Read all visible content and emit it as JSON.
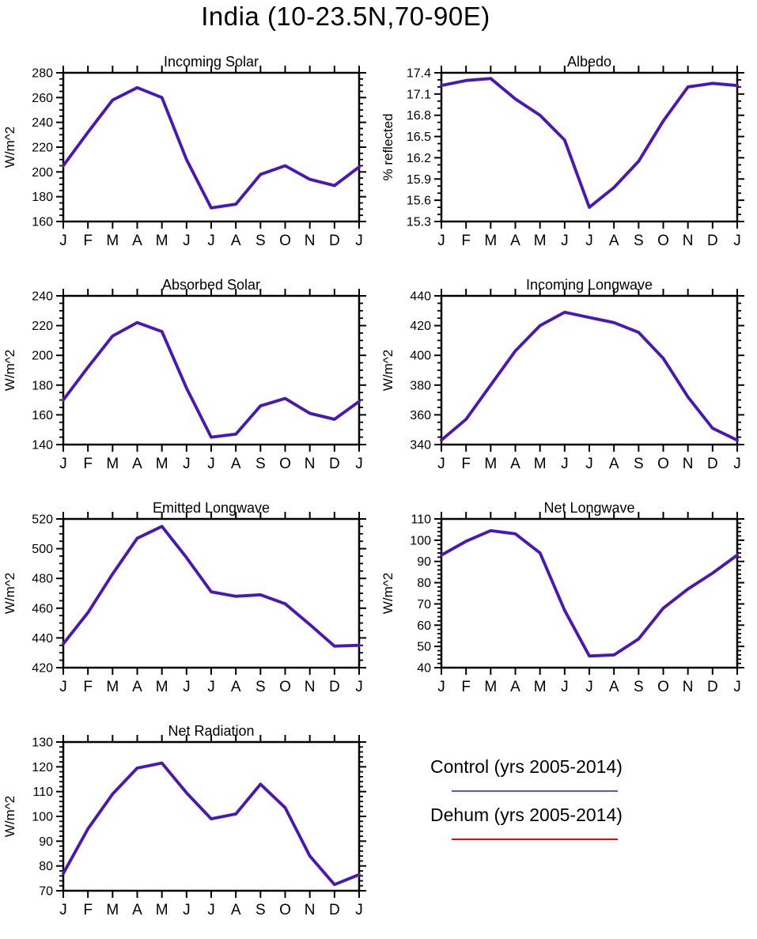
{
  "title": "India (10-23.5N,70-90E)",
  "colors": {
    "control_line": "#2222dd",
    "dehum_line": "#ee1111",
    "legend_control": "#5555e5",
    "legend_dehum": "#ff0000",
    "axis": "#000000"
  },
  "legend": {
    "items": [
      {
        "name": "control",
        "label": "Control (yrs 2005-2014)",
        "color": "#5555e5"
      },
      {
        "name": "dehum",
        "label": "Dehum (yrs 2005-2014)",
        "color": "#ff0000"
      }
    ]
  },
  "chart_data": [
    {
      "type": "line",
      "title": "Incoming Solar",
      "ylabel": "W/m^2",
      "ylim": [
        160,
        280
      ],
      "ytick_step": 20,
      "yminor_step": 5,
      "ydecimals": 0,
      "grid": false,
      "categories": [
        "J",
        "F",
        "M",
        "A",
        "M",
        "J",
        "J",
        "A",
        "S",
        "O",
        "N",
        "D",
        "J"
      ],
      "series": [
        {
          "name": "Control (yrs 2005-2014)",
          "values": [
            205,
            232,
            258,
            268,
            260,
            210,
            171,
            174,
            198,
            205,
            194,
            189,
            204
          ]
        },
        {
          "name": "Dehum (yrs 2005-2014)",
          "values": [
            205,
            232,
            258,
            268,
            260,
            210,
            171,
            174,
            198,
            205,
            194,
            189,
            204
          ]
        }
      ]
    },
    {
      "type": "line",
      "title": "Albedo",
      "ylabel": "% reflected",
      "ylim": [
        15.3,
        17.4
      ],
      "ytick_step": 0.3,
      "yminor_step": 0.1,
      "ydecimals": 1,
      "grid": false,
      "categories": [
        "J",
        "F",
        "M",
        "A",
        "M",
        "J",
        "J",
        "A",
        "S",
        "O",
        "N",
        "D",
        "J"
      ],
      "series": [
        {
          "name": "Control (yrs 2005-2014)",
          "values": [
            17.22,
            17.29,
            17.32,
            17.03,
            16.8,
            16.45,
            15.5,
            15.78,
            16.15,
            16.72,
            17.2,
            17.25,
            17.22
          ]
        },
        {
          "name": "Dehum (yrs 2005-2014)",
          "values": [
            17.22,
            17.29,
            17.32,
            17.03,
            16.8,
            16.45,
            15.5,
            15.78,
            16.15,
            16.72,
            17.2,
            17.25,
            17.22
          ]
        }
      ]
    },
    {
      "type": "line",
      "title": "Absorbed Solar",
      "ylabel": "W/m^2",
      "ylim": [
        140,
        240
      ],
      "ytick_step": 20,
      "yminor_step": 5,
      "ydecimals": 0,
      "grid": false,
      "categories": [
        "J",
        "F",
        "M",
        "A",
        "M",
        "J",
        "J",
        "A",
        "S",
        "O",
        "N",
        "D",
        "J"
      ],
      "series": [
        {
          "name": "Control (yrs 2005-2014)",
          "values": [
            170,
            192,
            213,
            222,
            216,
            178,
            145,
            147,
            166,
            171,
            161,
            157,
            169
          ]
        },
        {
          "name": "Dehum (yrs 2005-2014)",
          "values": [
            170,
            192,
            213,
            222,
            216,
            178,
            145,
            147,
            166,
            171,
            161,
            157,
            169
          ]
        }
      ]
    },
    {
      "type": "line",
      "title": "Incoming Longwave",
      "ylabel": "W/m^2",
      "ylim": [
        340,
        440
      ],
      "ytick_step": 20,
      "yminor_step": 5,
      "ydecimals": 0,
      "grid": false,
      "categories": [
        "J",
        "F",
        "M",
        "A",
        "M",
        "J",
        "J",
        "A",
        "S",
        "O",
        "N",
        "D",
        "J"
      ],
      "series": [
        {
          "name": "Control (yrs 2005-2014)",
          "values": [
            343,
            357,
            380,
            403,
            420,
            429,
            425.5,
            422,
            415.5,
            398,
            372,
            351,
            343
          ]
        },
        {
          "name": "Dehum (yrs 2005-2014)",
          "values": [
            343,
            357,
            380,
            403,
            420,
            429,
            425.5,
            422,
            415.5,
            398,
            372,
            351,
            343
          ]
        }
      ]
    },
    {
      "type": "line",
      "title": "Emitted Longwave",
      "ylabel": "W/m^2",
      "ylim": [
        420,
        520
      ],
      "ytick_step": 20,
      "yminor_step": 5,
      "ydecimals": 0,
      "grid": false,
      "categories": [
        "J",
        "F",
        "M",
        "A",
        "M",
        "J",
        "J",
        "A",
        "S",
        "O",
        "N",
        "D",
        "J"
      ],
      "series": [
        {
          "name": "Control (yrs 2005-2014)",
          "values": [
            436,
            457,
            483,
            507,
            515,
            494,
            471,
            468,
            469,
            463,
            449,
            434.5,
            435
          ]
        },
        {
          "name": "Dehum (yrs 2005-2014)",
          "values": [
            436,
            457,
            483,
            507,
            515,
            494,
            471,
            468,
            469,
            463,
            449,
            434.5,
            435
          ]
        }
      ]
    },
    {
      "type": "line",
      "title": "Net Longwave",
      "ylabel": "W/m^2",
      "ylim": [
        40,
        110
      ],
      "ytick_step": 10,
      "yminor_step": 2,
      "ydecimals": 0,
      "grid": false,
      "categories": [
        "J",
        "F",
        "M",
        "A",
        "M",
        "J",
        "J",
        "A",
        "S",
        "O",
        "N",
        "D",
        "J"
      ],
      "series": [
        {
          "name": "Control (yrs 2005-2014)",
          "values": [
            93,
            99.5,
            104.5,
            103,
            94,
            67,
            45.5,
            46,
            53.5,
            68,
            77,
            84.5,
            93
          ]
        },
        {
          "name": "Dehum (yrs 2005-2014)",
          "values": [
            93,
            99.5,
            104.5,
            103,
            94,
            67,
            45.5,
            46,
            53.5,
            68,
            77,
            84.5,
            93
          ]
        }
      ]
    },
    {
      "type": "line",
      "title": "Net Radiation",
      "ylabel": "W/m^2",
      "ylim": [
        70,
        130
      ],
      "ytick_step": 10,
      "yminor_step": 2,
      "ydecimals": 0,
      "grid": false,
      "categories": [
        "J",
        "F",
        "M",
        "A",
        "M",
        "J",
        "J",
        "A",
        "S",
        "O",
        "N",
        "D",
        "J"
      ],
      "series": [
        {
          "name": "Control (yrs 2005-2014)",
          "values": [
            77,
            95,
            109,
            119.5,
            121.5,
            109.5,
            99,
            101,
            113,
            103.5,
            84,
            72.5,
            76.5
          ]
        },
        {
          "name": "Dehum (yrs 2005-2014)",
          "values": [
            77,
            95,
            109,
            119.5,
            121.5,
            109.5,
            99,
            101,
            113,
            103.5,
            84,
            72.5,
            76.5
          ]
        }
      ]
    }
  ]
}
